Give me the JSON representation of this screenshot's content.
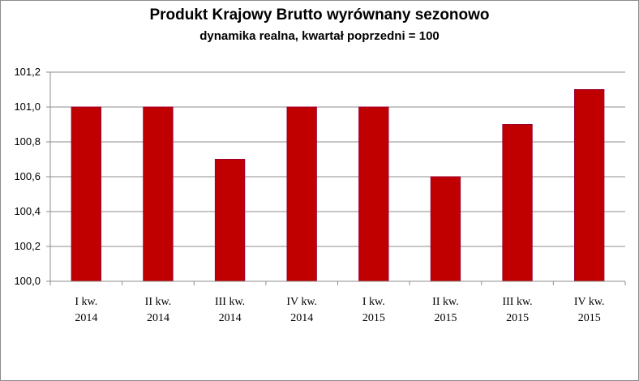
{
  "chart_data": {
    "type": "bar",
    "title": "Produkt Krajowy Brutto wyrównany sezonowo",
    "subtitle": "dynamika realna, kwartał poprzedni = 100",
    "categories": [
      [
        "I kw.",
        "2014"
      ],
      [
        "II kw.",
        "2014"
      ],
      [
        "III kw.",
        "2014"
      ],
      [
        "IV kw.",
        "2014"
      ],
      [
        "I kw.",
        "2015"
      ],
      [
        "II kw.",
        "2015"
      ],
      [
        "III kw.",
        "2015"
      ],
      [
        "IV kw.",
        "2015"
      ]
    ],
    "values": [
      101.0,
      101.0,
      100.7,
      101.0,
      101.0,
      100.6,
      100.9,
      101.1
    ],
    "ylim": [
      100.0,
      101.2
    ],
    "yticks": [
      "100,0",
      "100,2",
      "100,4",
      "100,6",
      "100,8",
      "101,0",
      "101,2"
    ],
    "ytick_values": [
      100.0,
      100.2,
      100.4,
      100.6,
      100.8,
      101.0,
      101.2
    ],
    "grid": true,
    "colors": {
      "bar": "#c00000",
      "bar_edge": "#9b0030",
      "grid": "#8c8c8c",
      "axis": "#8c8c8c"
    }
  }
}
